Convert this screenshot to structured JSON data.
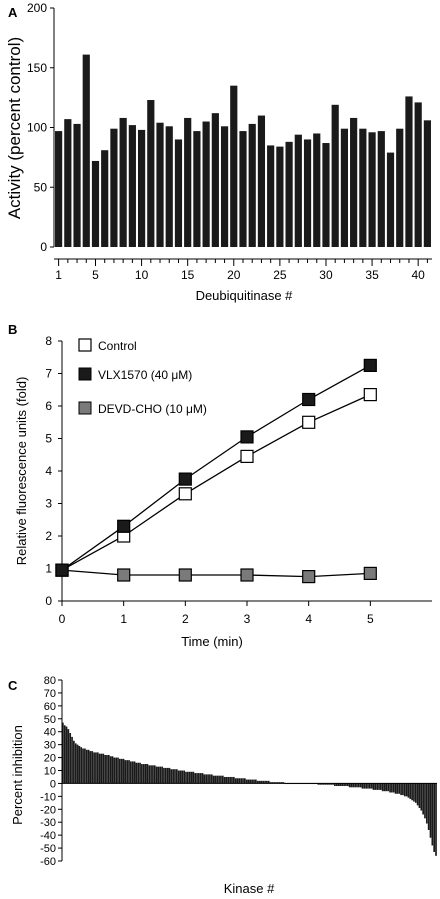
{
  "chart_data": [
    {
      "panel": "A",
      "type": "bar",
      "xlabel": "Deubiquitinase #",
      "ylabel": "Activity (percent control)",
      "ylim": [
        0,
        200
      ],
      "yticks": [
        0,
        50,
        100,
        150,
        200
      ],
      "xtick_labels": [
        1,
        5,
        10,
        15,
        20,
        25,
        30,
        35,
        40
      ],
      "categories": [
        1,
        2,
        3,
        4,
        5,
        6,
        7,
        8,
        9,
        10,
        11,
        12,
        13,
        14,
        15,
        16,
        17,
        18,
        19,
        20,
        21,
        22,
        23,
        24,
        25,
        26,
        27,
        28,
        29,
        30,
        31,
        32,
        33,
        34,
        35,
        36,
        37,
        38,
        39,
        40,
        41
      ],
      "values": [
        97,
        107,
        103,
        161,
        72,
        81,
        99,
        108,
        102,
        98,
        123,
        104,
        101,
        90,
        108,
        97,
        105,
        112,
        101,
        135,
        97,
        103,
        110,
        85,
        84,
        88,
        94,
        90,
        95,
        87,
        119,
        99,
        108,
        99,
        96,
        97,
        79,
        99,
        126,
        121,
        106
      ],
      "color": "#1a1a1a"
    },
    {
      "panel": "B",
      "type": "line",
      "xlabel": "Time (min)",
      "ylabel": "Relative fluorescence units (fold)",
      "xlim": [
        0,
        6
      ],
      "ylim": [
        0,
        8
      ],
      "xticks": [
        0,
        1,
        2,
        3,
        4,
        5
      ],
      "yticks": [
        0,
        1,
        2,
        3,
        4,
        5,
        6,
        7,
        8
      ],
      "x": [
        0,
        1,
        2,
        3,
        4,
        5
      ],
      "legend_position": "top-left",
      "series": [
        {
          "name": "Control",
          "values": [
            0.95,
            2.0,
            3.3,
            4.45,
            5.5,
            6.35
          ],
          "marker": "open-square",
          "color": "#ffffff"
        },
        {
          "name": "VLX1570 (40 μM)",
          "values": [
            0.95,
            2.3,
            3.75,
            5.05,
            6.2,
            7.25
          ],
          "marker": "filled-square",
          "color": "#1a1a1a"
        },
        {
          "name": "DEVD-CHO (10 μM)",
          "values": [
            0.95,
            0.8,
            0.8,
            0.8,
            0.75,
            0.85
          ],
          "marker": "gray-square",
          "color": "#7a7a7a"
        }
      ]
    },
    {
      "panel": "C",
      "type": "bar",
      "xlabel": "Kinase #",
      "ylabel": "Percent inhibition",
      "ylim": [
        -60,
        80
      ],
      "yticks": [
        80,
        70,
        60,
        50,
        40,
        30,
        20,
        10,
        0,
        -10,
        -20,
        -30,
        -40,
        -50,
        -60
      ],
      "values": [
        47,
        45,
        44,
        42,
        39,
        36,
        33,
        31,
        30,
        29,
        28,
        27,
        27,
        26,
        26,
        25,
        25,
        24,
        24,
        24,
        23,
        23,
        23,
        22,
        22,
        22,
        21,
        21,
        20,
        20,
        20,
        19,
        19,
        19,
        18,
        18,
        18,
        17,
        17,
        17,
        16,
        16,
        16,
        15,
        15,
        15,
        15,
        14,
        14,
        14,
        14,
        13,
        13,
        13,
        13,
        12,
        12,
        12,
        12,
        11,
        11,
        11,
        11,
        10,
        10,
        10,
        10,
        9,
        9,
        9,
        9,
        9,
        8,
        8,
        8,
        8,
        8,
        7,
        7,
        7,
        7,
        7,
        6,
        6,
        6,
        6,
        6,
        6,
        5,
        5,
        5,
        5,
        5,
        5,
        4,
        4,
        4,
        4,
        4,
        4,
        3,
        3,
        3,
        3,
        3,
        3,
        2,
        2,
        2,
        2,
        2,
        2,
        2,
        1,
        1,
        1,
        1,
        1,
        1,
        1,
        1,
        0,
        0,
        0,
        0,
        0,
        0,
        0,
        0,
        0,
        0,
        0,
        0,
        0,
        0,
        0,
        0,
        0,
        0,
        -1,
        -1,
        -1,
        -1,
        -1,
        -1,
        -1,
        -1,
        -1,
        -2,
        -2,
        -2,
        -2,
        -2,
        -2,
        -2,
        -2,
        -3,
        -3,
        -3,
        -3,
        -3,
        -3,
        -3,
        -4,
        -4,
        -4,
        -4,
        -4,
        -4,
        -5,
        -5,
        -5,
        -5,
        -5,
        -6,
        -6,
        -6,
        -6,
        -7,
        -7,
        -7,
        -8,
        -8,
        -8,
        -9,
        -9,
        -10,
        -10,
        -11,
        -12,
        -13,
        -14,
        -15,
        -17,
        -19,
        -21,
        -24,
        -27,
        -31,
        -36,
        -42,
        -48,
        -53,
        -56
      ],
      "color": "#1a1a1a"
    }
  ]
}
